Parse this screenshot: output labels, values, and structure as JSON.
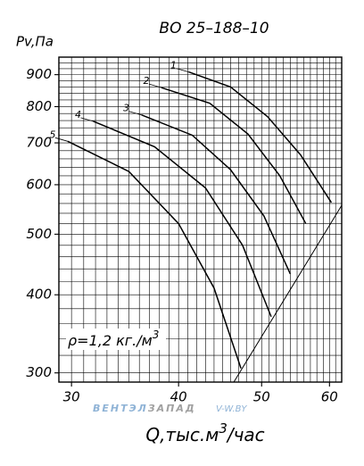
{
  "chart_data": {
    "type": "line",
    "title": "ВО 25–188–10",
    "ylabel": "Pv,Па",
    "xlabel": {
      "text": "Q,тыс.м",
      "sup": "3",
      "rest": "/час"
    },
    "annotation": {
      "text": "ρ=1,2 кг./м",
      "sup": "3"
    },
    "watermark": [
      "ВЕНТЭЛ",
      "ЗАПАД",
      "V-W.BY"
    ],
    "xscale": "log",
    "yscale": "log",
    "xlim": [
      29,
      62
    ],
    "ylim": [
      290,
      960
    ],
    "xticks": [
      30,
      40,
      50,
      60
    ],
    "yticks": [
      300,
      400,
      500,
      600,
      700,
      800,
      900
    ],
    "xgrid": [
      29,
      30,
      31,
      32,
      33,
      34,
      35,
      36,
      37,
      38,
      39,
      40,
      41,
      42,
      43,
      44,
      45,
      46,
      47,
      48,
      49,
      50,
      51,
      52,
      53,
      54,
      55,
      56,
      57,
      58,
      59,
      60,
      61,
      62
    ],
    "ygrid": [
      300,
      320,
      340,
      360,
      380,
      400,
      420,
      440,
      460,
      480,
      500,
      520,
      540,
      560,
      580,
      600,
      620,
      640,
      660,
      680,
      700,
      720,
      740,
      760,
      780,
      800,
      820,
      840,
      860,
      880,
      900,
      920,
      940
    ],
    "series": [
      {
        "name": "1",
        "color": "#000000",
        "x": [
          41.1,
          46,
          50.8,
          55.5,
          60.3
        ],
        "values": [
          909,
          860,
          771,
          670,
          562
        ]
      },
      {
        "name": "2",
        "color": "#000000",
        "x": [
          38.2,
          43.5,
          48.2,
          52.5,
          56.3
        ],
        "values": [
          858,
          810,
          723,
          620,
          520
        ]
      },
      {
        "name": "3",
        "color": "#000000",
        "x": [
          36.2,
          41.5,
          46,
          50.3,
          54
        ],
        "values": [
          776,
          720,
          634,
          535,
          432
        ]
      },
      {
        "name": "4",
        "color": "#000000",
        "x": [
          31.8,
          37.5,
          43,
          47.5,
          51.3
        ],
        "values": [
          758,
          690,
          593,
          480,
          369
        ]
      },
      {
        "name": "5",
        "color": "#000000",
        "x": [
          29.7,
          35,
          40,
          44,
          47.3
        ],
        "values": [
          704,
          630,
          520,
          410,
          305
        ]
      }
    ],
    "reference_line": {
      "x": [
        46.4,
        62
      ],
      "values": [
        290,
        556
      ]
    }
  }
}
